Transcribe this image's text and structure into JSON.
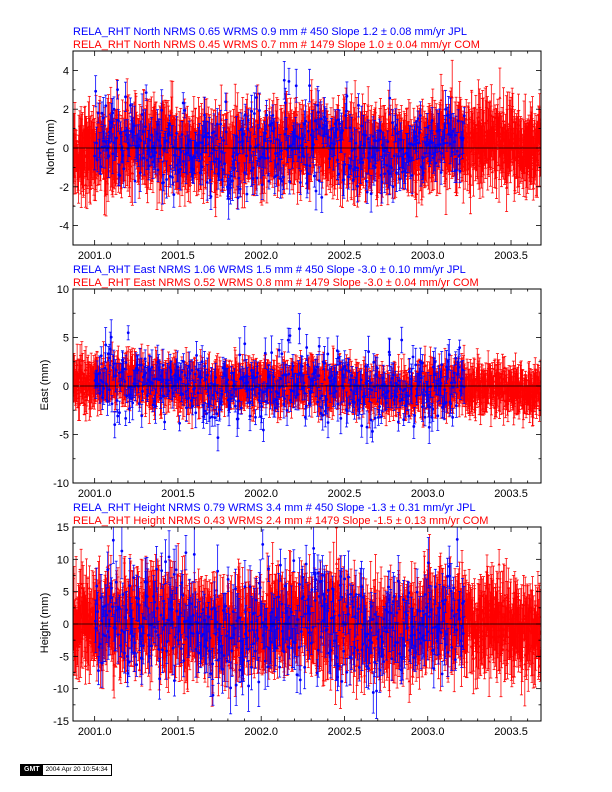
{
  "colors": {
    "jpl": "#0000ff",
    "com": "#ff0000",
    "frame": "#000000"
  },
  "stamp": {
    "logo": "GMT",
    "time": "2004 Apr 20 10:54:34"
  },
  "chart_data": [
    {
      "type": "scatter",
      "component": "North",
      "ylabel": "North (mm)",
      "xlim": [
        2000.87,
        2003.68
      ],
      "ylim": [
        -5,
        5
      ],
      "xticks": [
        "2001.0",
        "2001.5",
        "2002.0",
        "2002.5",
        "2003.0",
        "2003.5"
      ],
      "xtick_values": [
        2001.0,
        2001.5,
        2002.0,
        2002.5,
        2003.0,
        2003.5
      ],
      "yticks": [
        "-4",
        "-2",
        "0",
        "2",
        "4"
      ],
      "ytick_values": [
        -4,
        -2,
        0,
        2,
        4
      ],
      "zero_line": true,
      "series": [
        {
          "name": "JPL",
          "label": "RELA_RHT North NRMS 0.65 WRMS  0.9 mm # 450 Slope    1.2 ±  0.08 mm/yr JPL",
          "color": "#0000ff",
          "n_points": 450,
          "nrms": 0.65,
          "wrms_mm": 0.9,
          "slope_mm_yr": 1.2,
          "slope_sigma": 0.08,
          "x_start": 2001.0,
          "x_end": 2003.22,
          "err_mean": 0.75
        },
        {
          "name": "COM",
          "label": "RELA_RHT North NRMS 0.45 WRMS  0.7 mm # 1479 Slope    1.0 ±  0.04 mm/yr COM",
          "color": "#ff0000",
          "n_points": 1479,
          "nrms": 0.45,
          "wrms_mm": 0.7,
          "slope_mm_yr": 1.0,
          "slope_sigma": 0.04,
          "x_start": 2000.87,
          "x_end": 2003.68,
          "err_mean": 1.3
        }
      ]
    },
    {
      "type": "scatter",
      "component": "East",
      "ylabel": "East (mm)",
      "xlim": [
        2000.87,
        2003.68
      ],
      "ylim": [
        -10,
        10
      ],
      "xticks": [
        "2001.0",
        "2001.5",
        "2002.0",
        "2002.5",
        "2003.0",
        "2003.5"
      ],
      "xtick_values": [
        2001.0,
        2001.5,
        2002.0,
        2002.5,
        2003.0,
        2003.5
      ],
      "yticks": [
        "-10",
        "-5",
        "0",
        "5",
        "10"
      ],
      "ytick_values": [
        -10,
        -5,
        0,
        5,
        10
      ],
      "zero_line": true,
      "series": [
        {
          "name": "JPL",
          "label": "RELA_RHT East NRMS 1.06 WRMS  1.5 mm # 450 Slope   -3.0 ±  0.10 mm/yr JPL",
          "color": "#0000ff",
          "n_points": 450,
          "nrms": 1.06,
          "wrms_mm": 1.5,
          "slope_mm_yr": -3.0,
          "slope_sigma": 0.1,
          "x_start": 2001.0,
          "x_end": 2003.22,
          "err_mean": 1.2
        },
        {
          "name": "COM",
          "label": "RELA_RHT East NRMS 0.52 WRMS  0.8 mm # 1479 Slope   -3.0 ±  0.04 mm/yr COM",
          "color": "#ff0000",
          "n_points": 1479,
          "nrms": 0.52,
          "wrms_mm": 0.8,
          "slope_mm_yr": -3.0,
          "slope_sigma": 0.04,
          "x_start": 2000.87,
          "x_end": 2003.68,
          "err_mean": 1.6
        }
      ]
    },
    {
      "type": "scatter",
      "component": "Height",
      "ylabel": "Height (mm)",
      "xlim": [
        2000.87,
        2003.68
      ],
      "ylim": [
        -15,
        15
      ],
      "xticks": [
        "2001.0",
        "2001.5",
        "2002.0",
        "2002.5",
        "2003.0",
        "2003.5"
      ],
      "xtick_values": [
        2001.0,
        2001.5,
        2002.0,
        2002.5,
        2003.0,
        2003.5
      ],
      "yticks": [
        "-15",
        "-10",
        "-5",
        "0",
        "5",
        "10",
        "15"
      ],
      "ytick_values": [
        -15,
        -10,
        -5,
        0,
        5,
        10,
        15
      ],
      "zero_line": true,
      "series": [
        {
          "name": "JPL",
          "label": "RELA_RHT Height NRMS 0.79 WRMS  3.4 mm # 450 Slope   -1.3 ±  0.31 mm/yr JPL",
          "color": "#0000ff",
          "n_points": 450,
          "nrms": 0.79,
          "wrms_mm": 3.4,
          "slope_mm_yr": -1.3,
          "slope_sigma": 0.31,
          "x_start": 2001.0,
          "x_end": 2003.22,
          "err_mean": 3.0
        },
        {
          "name": "COM",
          "label": "RELA_RHT Height NRMS 0.43 WRMS  2.4 mm # 1479 Slope   -1.5 ±  0.13 mm/yr COM",
          "color": "#ff0000",
          "n_points": 1479,
          "nrms": 0.43,
          "wrms_mm": 2.4,
          "slope_mm_yr": -1.5,
          "slope_sigma": 0.13,
          "x_start": 2000.87,
          "x_end": 2003.68,
          "err_mean": 4.5
        }
      ]
    }
  ]
}
